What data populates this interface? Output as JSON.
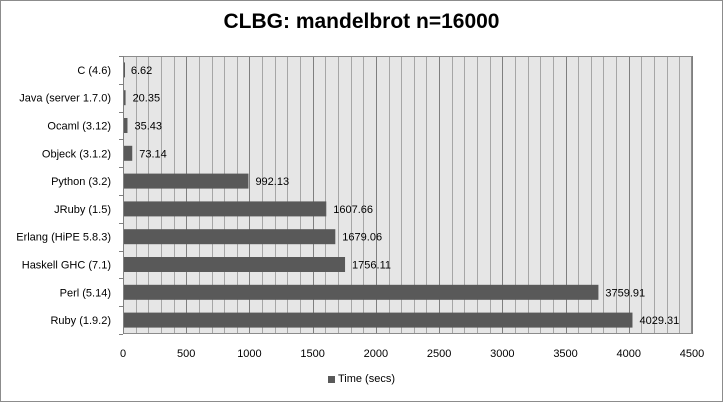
{
  "chart_data": {
    "type": "bar",
    "orientation": "horizontal",
    "title": "CLBG: mandelbrot n=16000",
    "categories": [
      "C (4.6)",
      "Java (server 1.7.0)",
      "Ocaml (3.12)",
      "Objeck (3.1.2)",
      "Python (3.2)",
      "JRuby (1.5)",
      "Erlang (HiPE 5.8.3)",
      "Haskell GHC (7.1)",
      "Perl (5.14)",
      "Ruby (1.9.2)"
    ],
    "series": [
      {
        "name": "Time (secs)",
        "values": [
          6.62,
          20.35,
          35.43,
          73.14,
          992.13,
          1607.66,
          1679.06,
          1756.11,
          3759.91,
          4029.31
        ],
        "value_labels": [
          "6.62",
          "20.35",
          "35.43",
          "73.14",
          "992.13",
          "1607.66",
          "1679.06",
          "1756.11",
          "3759.91",
          "4029.31"
        ]
      }
    ],
    "xlim": [
      0,
      4500
    ],
    "xticks": [
      0,
      500,
      1000,
      1500,
      2000,
      2500,
      3000,
      3500,
      4000,
      4500
    ],
    "grid": true,
    "legend_position": "bottom",
    "colors": {
      "bar": "#595959",
      "plot_bg": "#e6e6e6",
      "grid": "#8c8c8c"
    }
  }
}
